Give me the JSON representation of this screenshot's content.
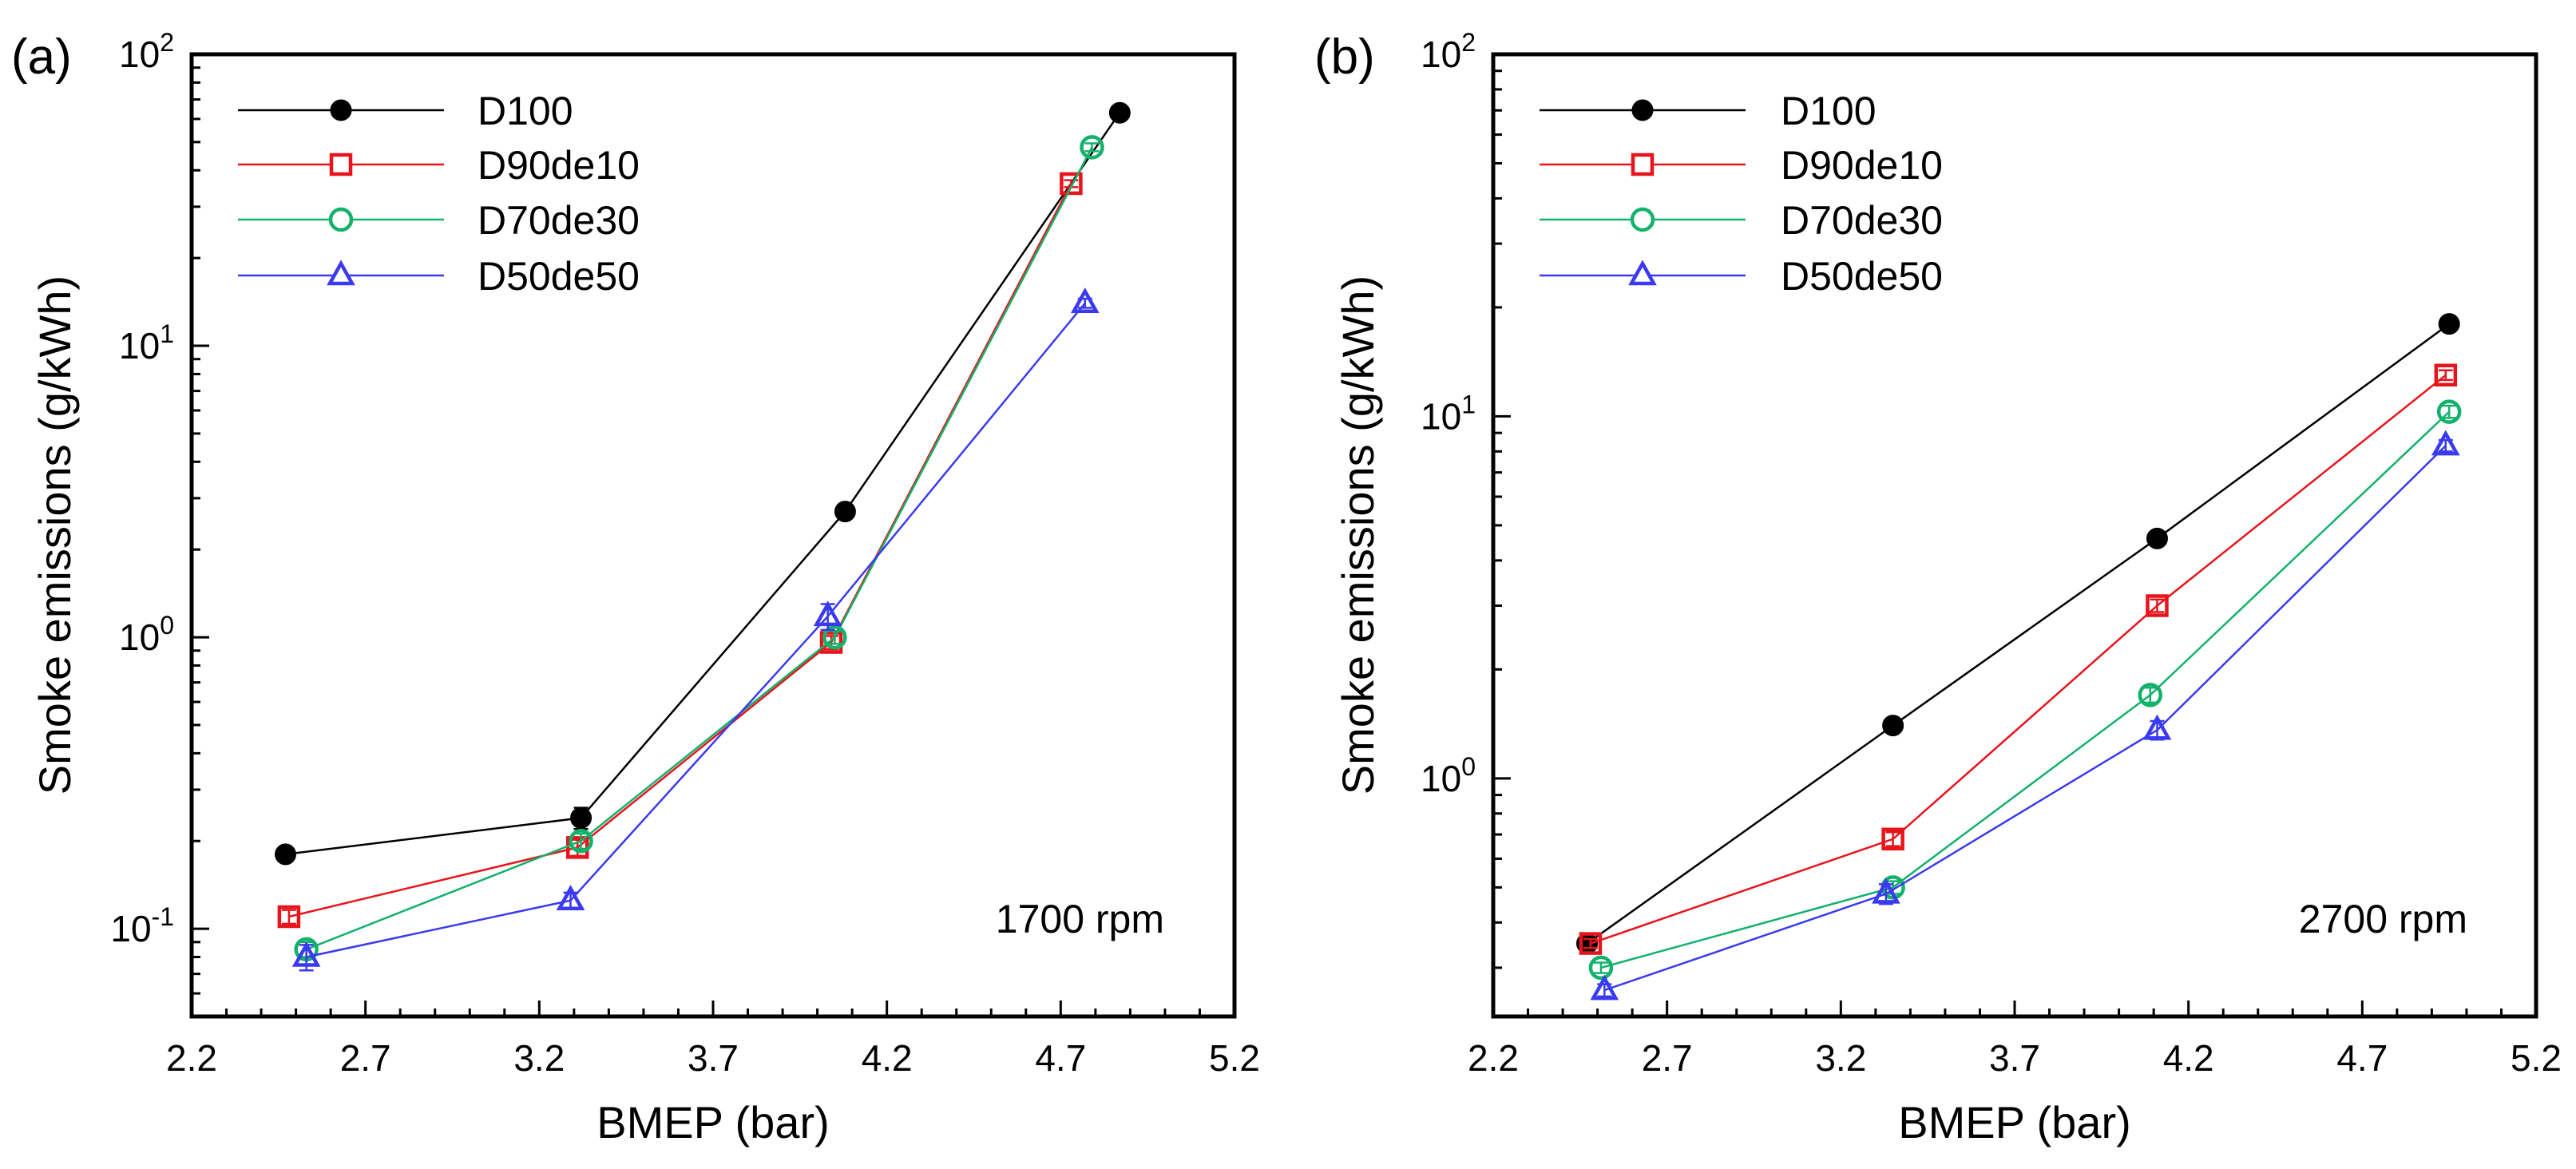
{
  "chart_data": [
    {
      "type": "line",
      "panel_label": "(a)",
      "annotation": "1700 rpm",
      "xlabel": "BMEP (bar)",
      "ylabel": "Smoke emissions (g/kWh)",
      "xscale": "linear",
      "yscale": "log",
      "xlim": [
        2.2,
        5.2
      ],
      "ylim": [
        0.05,
        100
      ],
      "xticks": [
        2.2,
        2.7,
        3.2,
        3.7,
        4.2,
        4.7,
        5.2
      ],
      "xtick_labels": [
        "2.2",
        "2.7",
        "3.2",
        "3.7",
        "4.2",
        "4.7",
        "5.2"
      ],
      "yticks": [
        0.1,
        1,
        10,
        100
      ],
      "ytick_labels": [
        {
          "base": "10",
          "exp": "-1"
        },
        {
          "base": "10",
          "exp": "0"
        },
        {
          "base": "10",
          "exp": "1"
        },
        {
          "base": "10",
          "exp": "2"
        }
      ],
      "legend_position": "top-left",
      "series": [
        {
          "name": "D100",
          "color": "#000000",
          "marker": "filled-circle",
          "x": [
            2.47,
            3.32,
            4.08,
            4.87
          ],
          "y": [
            0.18,
            0.24,
            2.7,
            63
          ],
          "err": [
            0.008,
            0.02,
            0.1,
            2
          ]
        },
        {
          "name": "D90de10",
          "color": "#e8141c",
          "marker": "square",
          "x": [
            2.48,
            3.31,
            4.04,
            4.73
          ],
          "y": [
            0.11,
            0.19,
            0.96,
            36
          ],
          "err": [
            0.006,
            0.012,
            0.05,
            1
          ]
        },
        {
          "name": "D70de30",
          "color": "#12b26b",
          "marker": "circle",
          "x": [
            2.53,
            3.32,
            4.05,
            4.79
          ],
          "y": [
            0.085,
            0.2,
            1.0,
            48
          ],
          "err": [
            0.005,
            0.012,
            0.05,
            1.5
          ]
        },
        {
          "name": "D50de50",
          "color": "#3a3af0",
          "marker": "triangle",
          "x": [
            2.53,
            3.29,
            4.03,
            4.77
          ],
          "y": [
            0.08,
            0.125,
            1.18,
            14
          ],
          "err": [
            0.008,
            0.008,
            0.12,
            0.5
          ]
        }
      ]
    },
    {
      "type": "line",
      "panel_label": "(b)",
      "annotation": "2700 rpm",
      "xlabel": "BMEP (bar)",
      "ylabel": "Smoke emissions (g/kWh)",
      "xscale": "linear",
      "yscale": "log",
      "xlim": [
        2.2,
        5.2
      ],
      "ylim": [
        0.22,
        100
      ],
      "xticks": [
        2.2,
        2.7,
        3.2,
        3.7,
        4.2,
        4.7,
        5.2
      ],
      "xtick_labels": [
        "2.2",
        "2.7",
        "3.2",
        "3.7",
        "4.2",
        "4.7",
        "5.2"
      ],
      "yticks": [
        1,
        10,
        100
      ],
      "ytick_labels": [
        {
          "base": "10",
          "exp": "0"
        },
        {
          "base": "10",
          "exp": "1"
        },
        {
          "base": "10",
          "exp": "2"
        }
      ],
      "legend_position": "top-left",
      "series": [
        {
          "name": "D100",
          "color": "#000000",
          "marker": "filled-circle",
          "x": [
            2.47,
            3.35,
            4.11,
            4.95
          ],
          "y": [
            0.35,
            1.4,
            4.6,
            18
          ],
          "err": [
            0.01,
            0.05,
            0.15,
            0.5
          ]
        },
        {
          "name": "D90de10",
          "color": "#e8141c",
          "marker": "square",
          "x": [
            2.48,
            3.35,
            4.11,
            4.94
          ],
          "y": [
            0.35,
            0.68,
            3.0,
            13
          ],
          "err": [
            0.01,
            0.03,
            0.12,
            0.4
          ]
        },
        {
          "name": "D70de30",
          "color": "#12b26b",
          "marker": "circle",
          "x": [
            2.51,
            3.35,
            4.09,
            4.95
          ],
          "y": [
            0.3,
            0.5,
            1.7,
            10.3
          ],
          "err": [
            0.01,
            0.02,
            0.08,
            0.4
          ]
        },
        {
          "name": "D50de50",
          "color": "#3a3af0",
          "marker": "triangle",
          "x": [
            2.52,
            3.33,
            4.11,
            4.94
          ],
          "y": [
            0.26,
            0.48,
            1.36,
            8.3
          ],
          "err": [
            0.01,
            0.03,
            0.08,
            0.3
          ]
        }
      ]
    }
  ]
}
